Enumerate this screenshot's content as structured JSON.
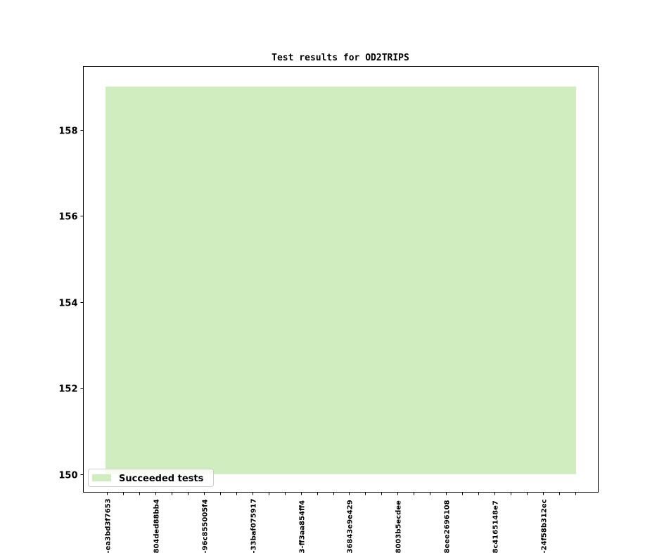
{
  "chart_data": {
    "type": "area",
    "title": "Test results for OD2TRIPS",
    "xlabel": "",
    "ylabel": "",
    "x_tick_count": 30,
    "x_tick_labels": [
      "-ea3bd3f7653",
      "804ded88bb4",
      "-96c855005f4",
      "-33baf075917",
      "3-ff3aa854ff4",
      "36843e9e429",
      "8003b5ecdee",
      "8eee2696108",
      "8c4165148e7",
      "-24f58b312ec"
    ],
    "x_tick_label_every": 3,
    "ylim": [
      149.58,
      159.47
    ],
    "y_ticks": [
      150,
      152,
      154,
      156,
      158
    ],
    "grid": false,
    "legend_position": "lower-left",
    "series": [
      {
        "name": "Succeeded tests",
        "color": "#cfedbe",
        "baseline": 150,
        "values": [
          159,
          159,
          159,
          159,
          159,
          159,
          159,
          159,
          159,
          159,
          159,
          159,
          159,
          159,
          159,
          159,
          159,
          159,
          159,
          159,
          159,
          159,
          159,
          159,
          159,
          159,
          159,
          159,
          159,
          159
        ]
      }
    ]
  }
}
